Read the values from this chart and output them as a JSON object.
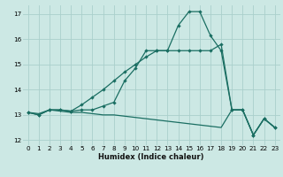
{
  "xlabel": "Humidex (Indice chaleur)",
  "background_color": "#cce8e4",
  "grid_color": "#aacfcc",
  "line_color": "#1a6e62",
  "xlim_min": -0.5,
  "xlim_max": 23.5,
  "ylim_min": 11.8,
  "ylim_max": 17.35,
  "yticks": [
    12,
    13,
    14,
    15,
    16,
    17
  ],
  "xticks": [
    0,
    1,
    2,
    3,
    4,
    5,
    6,
    7,
    8,
    9,
    10,
    11,
    12,
    13,
    14,
    15,
    16,
    17,
    18,
    19,
    20,
    21,
    22,
    23
  ],
  "line1_x": [
    0,
    1,
    2,
    3,
    4,
    5,
    6,
    7,
    8,
    9,
    10,
    11,
    12,
    13,
    14,
    15,
    16,
    17,
    18,
    19,
    20,
    21,
    22,
    23
  ],
  "line1_y": [
    13.1,
    13.0,
    13.2,
    13.2,
    13.15,
    13.2,
    13.2,
    13.35,
    13.5,
    14.35,
    14.85,
    15.55,
    15.55,
    15.55,
    16.55,
    17.1,
    17.1,
    16.15,
    15.55,
    13.2,
    13.2,
    12.2,
    12.85,
    12.5
  ],
  "line2_x": [
    0,
    1,
    2,
    3,
    4,
    5,
    6,
    7,
    8,
    9,
    10,
    11,
    12,
    13,
    14,
    15,
    16,
    17,
    18,
    19,
    20,
    21,
    22,
    23
  ],
  "line2_y": [
    13.1,
    13.0,
    13.2,
    13.2,
    13.15,
    13.4,
    13.7,
    14.0,
    14.35,
    14.7,
    15.0,
    15.3,
    15.55,
    15.55,
    15.55,
    15.55,
    15.55,
    15.55,
    15.8,
    13.2,
    13.2,
    12.2,
    12.85,
    12.5
  ],
  "line3_x": [
    0,
    1,
    2,
    3,
    4,
    5,
    6,
    7,
    8,
    9,
    10,
    11,
    12,
    13,
    14,
    15,
    16,
    17,
    18,
    19,
    20,
    21,
    22,
    23
  ],
  "line3_y": [
    13.1,
    13.05,
    13.2,
    13.15,
    13.1,
    13.1,
    13.05,
    13.0,
    13.0,
    12.95,
    12.9,
    12.85,
    12.8,
    12.75,
    12.7,
    12.65,
    12.6,
    12.55,
    12.5,
    13.2,
    13.2,
    12.2,
    12.85,
    12.5
  ]
}
